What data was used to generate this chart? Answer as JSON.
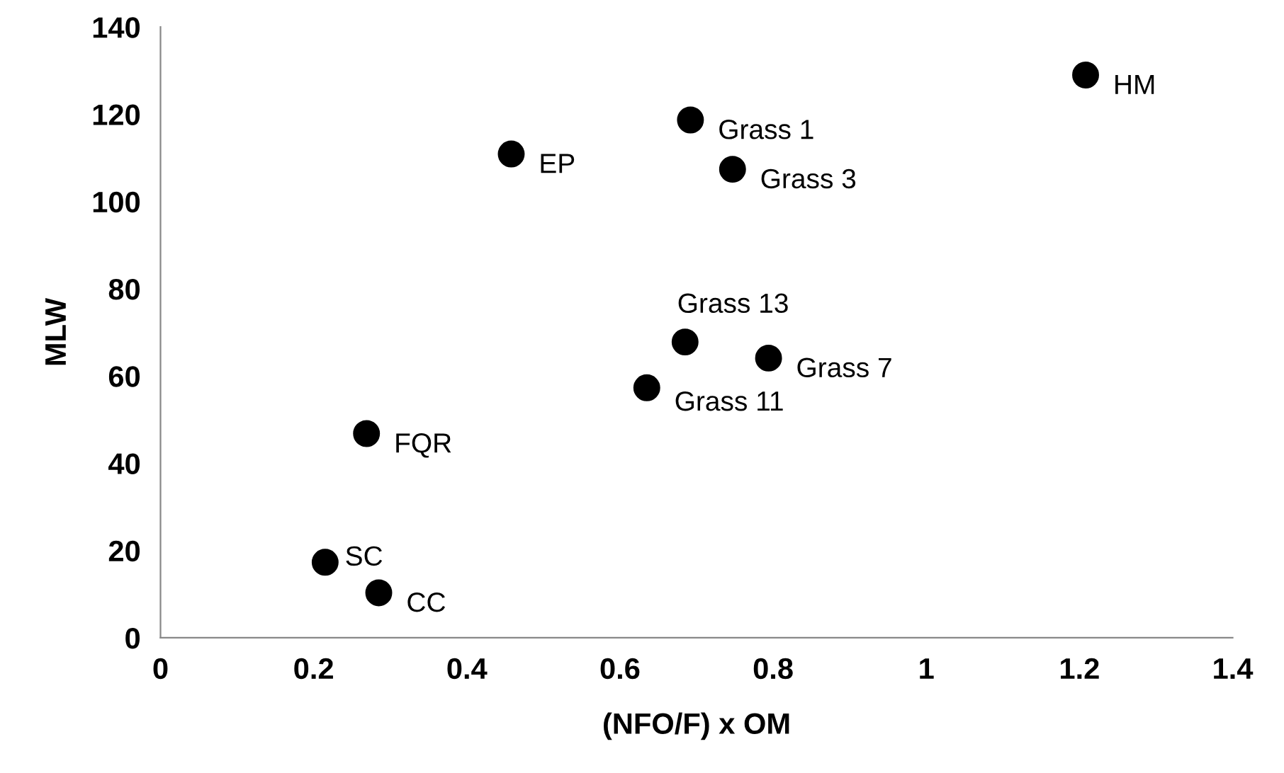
{
  "chart_data": {
    "type": "scatter",
    "xlabel": "(NFO/F) x OM",
    "ylabel": "MLW",
    "x": [
      0.215,
      0.285,
      0.269,
      0.458,
      0.635,
      0.685,
      0.794,
      0.692,
      0.747,
      1.208
    ],
    "series": [
      {
        "color": "#000000",
        "values": [
          17.3,
          10.3,
          46.8,
          110.9,
          57.3,
          67.8,
          64.1,
          118.7,
          107.4,
          129
        ]
      }
    ],
    "marker": "circle",
    "grid": false,
    "legend": false,
    "xlim": [
      0,
      1.4
    ],
    "xticks": [
      0,
      {
        "value": 0.2,
        "label": "0.2"
      },
      {
        "value": 0.4,
        "label": "0.4"
      },
      {
        "value": 0.6,
        "label": "0.6"
      },
      {
        "value": 0.8,
        "label": "0.8"
      },
      1,
      {
        "value": 1.2,
        "label": "1.2"
      },
      {
        "value": 1.4,
        "label": "1.4"
      }
    ],
    "ylim": [
      0,
      140
    ],
    "yticks": [
      0,
      20,
      40,
      60,
      80,
      100,
      120,
      140
    ],
    "annotations": [
      {
        "text": "SC",
        "x": 0.215,
        "y": 17.3
      },
      {
        "text": "CC",
        "x": 0.285,
        "y": 10.3
      },
      {
        "text": "FQR",
        "x": 0.269,
        "y": 46.8
      },
      {
        "text": "EP",
        "x": 0.458,
        "y": 110.9
      },
      {
        "text": "Grass 11",
        "x": 0.635,
        "y": 57.3
      },
      {
        "text": "Grass 13",
        "x": 0.685,
        "y": 67.8
      },
      {
        "text": "Grass 7",
        "x": 0.794,
        "y": 64.1
      },
      {
        "text": "Grass 1",
        "x": 0.692,
        "y": 118.7
      },
      {
        "text": "Grass 3",
        "x": 0.747,
        "y": 107.4
      },
      {
        "text": "HM",
        "x": 1.208,
        "y": 129
      }
    ]
  }
}
